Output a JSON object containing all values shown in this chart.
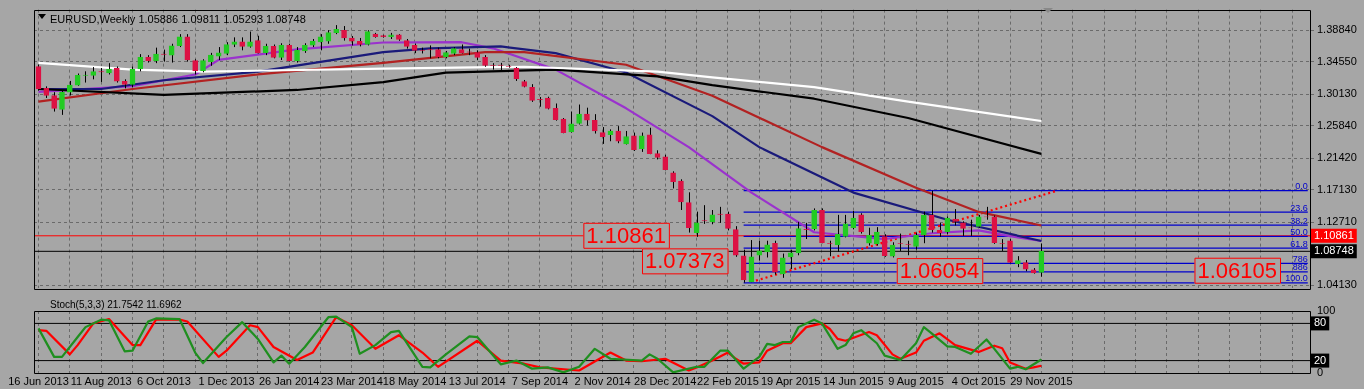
{
  "chart_data": [
    {
      "type": "candlestick",
      "title": "EURUSD,Weekly 1.05886 1.09811 1.05293 1.08748",
      "x": [
        "2013-06-16",
        "2013-06-23",
        "2013-06-30",
        "2013-07-07",
        "2013-07-14",
        "2013-07-21",
        "2013-07-28",
        "2013-08-04",
        "2013-08-11",
        "2013-08-18",
        "2013-08-25",
        "2013-09-01",
        "2013-09-08",
        "2013-09-15",
        "2013-09-22",
        "2013-09-29",
        "2013-10-06",
        "2013-10-13",
        "2013-10-20",
        "2013-10-27",
        "2013-11-03",
        "2013-11-10",
        "2013-11-17",
        "2013-11-24",
        "2013-12-01",
        "2013-12-08",
        "2013-12-15",
        "2013-12-22",
        "2013-12-29",
        "2014-01-05",
        "2014-01-12",
        "2014-01-19",
        "2014-01-26",
        "2014-02-02",
        "2014-02-09",
        "2014-02-16",
        "2014-02-23",
        "2014-03-02",
        "2014-03-09",
        "2014-03-16",
        "2014-03-23",
        "2014-03-30",
        "2014-04-06",
        "2014-04-13",
        "2014-04-20",
        "2014-04-27",
        "2014-05-04",
        "2014-05-11",
        "2014-05-18",
        "2014-05-25",
        "2014-06-01",
        "2014-06-08",
        "2014-06-15",
        "2014-06-22",
        "2014-06-29",
        "2014-07-06",
        "2014-07-13",
        "2014-07-20",
        "2014-07-27",
        "2014-08-03",
        "2014-08-10",
        "2014-08-17",
        "2014-08-24",
        "2014-08-31",
        "2014-09-07",
        "2014-09-14",
        "2014-09-21",
        "2014-09-28",
        "2014-10-05",
        "2014-10-12",
        "2014-10-19",
        "2014-10-26",
        "2014-11-02",
        "2014-11-09",
        "2014-11-16",
        "2014-11-23",
        "2014-11-30",
        "2014-12-07",
        "2014-12-14",
        "2014-12-21",
        "2014-12-28",
        "2015-01-04",
        "2015-01-11",
        "2015-01-18",
        "2015-01-25",
        "2015-02-01",
        "2015-02-08",
        "2015-02-15",
        "2015-02-22",
        "2015-03-01",
        "2015-03-08",
        "2015-03-15",
        "2015-03-22",
        "2015-03-29",
        "2015-04-05",
        "2015-04-12",
        "2015-04-19",
        "2015-04-26",
        "2015-05-03",
        "2015-05-10",
        "2015-05-17",
        "2015-05-24",
        "2015-05-31",
        "2015-06-07",
        "2015-06-14",
        "2015-06-21",
        "2015-06-28",
        "2015-07-05",
        "2015-07-12",
        "2015-07-19",
        "2015-07-26",
        "2015-08-02",
        "2015-08-09",
        "2015-08-16",
        "2015-08-23",
        "2015-08-30",
        "2015-09-06",
        "2015-09-13",
        "2015-09-20",
        "2015-09-27",
        "2015-10-04",
        "2015-10-11",
        "2015-10-18",
        "2015-10-25",
        "2015-11-01",
        "2015-11-08",
        "2015-11-15",
        "2015-11-22",
        "2015-11-29"
      ],
      "ohlc": [
        [
          1.3391,
          1.3414,
          1.3062,
          1.3084
        ],
        [
          1.3093,
          1.312,
          1.2962,
          1.2996
        ],
        [
          1.2996,
          1.3041,
          1.2777,
          1.2821
        ],
        [
          1.2807,
          1.3062,
          1.2732,
          1.3041
        ],
        [
          1.3041,
          1.3194,
          1.2996,
          1.3137
        ],
        [
          1.3137,
          1.3295,
          1.3128,
          1.3269
        ],
        [
          1.3269,
          1.3325,
          1.3172,
          1.3272
        ],
        [
          1.3269,
          1.3383,
          1.3216,
          1.3321
        ],
        [
          1.3321,
          1.337,
          1.318,
          1.3318
        ],
        [
          1.3304,
          1.3436,
          1.3282,
          1.3357
        ],
        [
          1.3365,
          1.3391,
          1.3172,
          1.319
        ],
        [
          1.319,
          1.3216,
          1.3093,
          1.3146
        ],
        [
          1.3146,
          1.3391,
          1.3107,
          1.3357
        ],
        [
          1.3357,
          1.3559,
          1.3325,
          1.3515
        ],
        [
          1.3515,
          1.3545,
          1.3444,
          1.347
        ],
        [
          1.347,
          1.3647,
          1.3436,
          1.3559
        ],
        [
          1.3559,
          1.362,
          1.3457,
          1.3556
        ],
        [
          1.3545,
          1.37,
          1.3444,
          1.3673
        ],
        [
          1.3673,
          1.3831,
          1.3655,
          1.3796
        ],
        [
          1.3796,
          1.3831,
          1.3457,
          1.3479
        ],
        [
          1.347,
          1.3489,
          1.3282,
          1.3331
        ],
        [
          1.3331,
          1.3489,
          1.3312,
          1.347
        ],
        [
          1.3457,
          1.3576,
          1.34,
          1.3545
        ],
        [
          1.3532,
          1.3655,
          1.3479,
          1.3576
        ],
        [
          1.3568,
          1.3721,
          1.3545,
          1.369
        ],
        [
          1.369,
          1.3787,
          1.3655,
          1.3726
        ],
        [
          1.3726,
          1.3787,
          1.3611,
          1.3664
        ],
        [
          1.3664,
          1.3866,
          1.3647,
          1.3726
        ],
        [
          1.3743,
          1.3809,
          1.3568,
          1.3576
        ],
        [
          1.3576,
          1.37,
          1.3545,
          1.3664
        ],
        [
          1.3664,
          1.369,
          1.3502,
          1.3515
        ],
        [
          1.3515,
          1.3707,
          1.3479,
          1.3677
        ],
        [
          1.3677,
          1.37,
          1.3457,
          1.347
        ],
        [
          1.347,
          1.3655,
          1.3444,
          1.3611
        ],
        [
          1.3602,
          1.3707,
          1.3576,
          1.3677
        ],
        [
          1.3681,
          1.3765,
          1.3655,
          1.3734
        ],
        [
          1.3726,
          1.3831,
          1.3611,
          1.3796
        ],
        [
          1.3734,
          1.3884,
          1.37,
          1.3852
        ],
        [
          1.3852,
          1.3954,
          1.3831,
          1.3897
        ],
        [
          1.3884,
          1.3941,
          1.3743,
          1.3779
        ],
        [
          1.3779,
          1.3805,
          1.3677,
          1.3734
        ],
        [
          1.3734,
          1.3779,
          1.3664,
          1.369
        ],
        [
          1.369,
          1.3884,
          1.3677,
          1.3866
        ],
        [
          1.3831,
          1.3848,
          1.3783,
          1.3796
        ],
        [
          1.3813,
          1.3822,
          1.3783,
          1.3796
        ],
        [
          1.3796,
          1.3848,
          1.3765,
          1.3822
        ],
        [
          1.3822,
          1.3831,
          1.374,
          1.376
        ],
        [
          1.3743,
          1.3765,
          1.3634,
          1.3664
        ],
        [
          1.3677,
          1.3703,
          1.3572,
          1.3611
        ],
        [
          1.3611,
          1.3647,
          1.3568,
          1.3608
        ],
        [
          1.362,
          1.3677,
          1.3502,
          1.3617
        ],
        [
          1.362,
          1.3647,
          1.3502,
          1.3523
        ],
        [
          1.3523,
          1.3602,
          1.3502,
          1.3581
        ],
        [
          1.3568,
          1.3655,
          1.3545,
          1.3634
        ],
        [
          1.362,
          1.369,
          1.3568,
          1.3576
        ],
        [
          1.359,
          1.3634,
          1.3545,
          1.3587
        ],
        [
          1.3581,
          1.3611,
          1.3479,
          1.3515
        ],
        [
          1.3515,
          1.3545,
          1.3387,
          1.3404
        ],
        [
          1.3404,
          1.3436,
          1.3348,
          1.3401
        ],
        [
          1.3409,
          1.344,
          1.3339,
          1.3406
        ],
        [
          1.3391,
          1.3414,
          1.3374,
          1.3389
        ],
        [
          1.337,
          1.3383,
          1.3194,
          1.3225
        ],
        [
          1.3186,
          1.3207,
          1.3107,
          1.312
        ],
        [
          1.3107,
          1.315,
          1.2909,
          1.293
        ],
        [
          1.2943,
          1.2975,
          1.2843,
          1.294
        ],
        [
          1.2962,
          1.2979,
          1.2807,
          1.2821
        ],
        [
          1.2821,
          1.2887,
          1.2653,
          1.2666
        ],
        [
          1.2676,
          1.2689,
          1.2482,
          1.2491
        ],
        [
          1.25,
          1.2777,
          1.2491,
          1.261
        ],
        [
          1.2614,
          1.2873,
          1.2601,
          1.2742
        ],
        [
          1.2742,
          1.283,
          1.2587,
          1.2659
        ],
        [
          1.2659,
          1.2742,
          1.2478,
          1.2513
        ],
        [
          1.2491,
          1.2566,
          1.2337,
          1.2435
        ],
        [
          1.2461,
          1.2535,
          1.2373,
          1.2513
        ],
        [
          1.2513,
          1.2579,
          1.2346,
          1.2373
        ],
        [
          1.2337,
          1.2513,
          1.2329,
          1.2438
        ],
        [
          1.2448,
          1.2491,
          1.2241,
          1.2258
        ],
        [
          1.2271,
          1.2491,
          1.2228,
          1.2448
        ],
        [
          1.2461,
          1.2557,
          1.2197,
          1.2205
        ],
        [
          1.2205,
          1.225,
          1.2126,
          1.2152
        ],
        [
          1.2162,
          1.2188,
          1.1977,
          1.1986
        ],
        [
          1.1942,
          1.1964,
          1.1731,
          1.1823
        ],
        [
          1.1832,
          1.1855,
          1.1437,
          1.1546
        ],
        [
          1.1538,
          1.1678,
          1.113,
          1.1196
        ],
        [
          1.113,
          1.1415,
          1.1072,
          1.1262
        ],
        [
          1.1292,
          1.1503,
          1.1248,
          1.1289
        ],
        [
          1.1275,
          1.1437,
          1.1243,
          1.1371
        ],
        [
          1.138,
          1.148,
          1.1262,
          1.1377
        ],
        [
          1.138,
          1.1415,
          1.116,
          1.1187
        ],
        [
          1.1169,
          1.1217,
          1.08,
          1.0821
        ],
        [
          1.0813,
          1.0897,
          1.0449,
          1.0484
        ],
        [
          1.0458,
          1.1028,
          1.0455,
          1.08
        ],
        [
          1.0821,
          1.1019,
          1.0748,
          1.088
        ],
        [
          1.0867,
          1.1019,
          1.0791,
          1.0963
        ],
        [
          1.0985,
          1.1019,
          1.0558,
          1.059
        ],
        [
          1.0567,
          1.0844,
          1.0514,
          1.0787
        ],
        [
          1.08,
          1.0897,
          1.0633,
          1.0853
        ],
        [
          1.0853,
          1.1275,
          1.0821,
          1.1183
        ],
        [
          1.1174,
          1.1262,
          1.1042,
          1.1171
        ],
        [
          1.1183,
          1.1459,
          1.116,
          1.1433
        ],
        [
          1.1433,
          1.1459,
          1.0985,
          1.0993
        ],
        [
          1.0985,
          1.1019,
          1.0808,
          1.0982
        ],
        [
          1.0963,
          1.1371,
          1.0867,
          1.1107
        ],
        [
          1.1077,
          1.1371,
          1.1064,
          1.1249
        ],
        [
          1.1196,
          1.1424,
          1.1174,
          1.1327
        ],
        [
          1.1371,
          1.1393,
          1.1116,
          1.1143
        ],
        [
          1.0985,
          1.1196,
          1.0953,
          1.1094
        ],
        [
          1.0975,
          1.1204,
          1.0953,
          1.1138
        ],
        [
          1.1077,
          1.1107,
          1.08,
          1.0814
        ],
        [
          1.0808,
          1.0998,
          1.0791,
          1.0959
        ],
        [
          1.0985,
          1.1116,
          1.088,
          1.0982
        ],
        [
          1.0967,
          1.1019,
          1.0821,
          1.0964
        ],
        [
          1.094,
          1.1129,
          1.0897,
          1.1094
        ],
        [
          1.1098,
          1.1415,
          1.0985,
          1.1367
        ],
        [
          1.1367,
          1.17,
          1.113,
          1.1169
        ],
        [
          1.116,
          1.1262,
          1.1072,
          1.113
        ],
        [
          1.1138,
          1.1349,
          1.1107,
          1.1327
        ],
        [
          1.1314,
          1.145,
          1.1226,
          1.1283
        ],
        [
          1.1262,
          1.1283,
          1.1085,
          1.1187
        ],
        [
          1.1196,
          1.1305,
          1.1085,
          1.1193
        ],
        [
          1.1213,
          1.1371,
          1.1196,
          1.1345
        ],
        [
          1.1345,
          1.148,
          1.1305,
          1.1342
        ],
        [
          1.1345,
          1.1362,
          1.0976,
          1.0993
        ],
        [
          1.0985,
          1.1041,
          1.088,
          1.0982
        ],
        [
          1.1019,
          1.1041,
          1.0712,
          1.0725
        ],
        [
          1.0708,
          1.0809,
          1.0659,
          1.0748
        ],
        [
          1.0721,
          1.0756,
          1.0603,
          1.0633
        ],
        [
          1.0624,
          1.0646,
          1.0571,
          1.058
        ],
        [
          1.05886,
          1.09811,
          1.05293,
          1.08748
        ]
      ],
      "series": [
        {
          "type": "line",
          "color": "#ffffff",
          "x": [
            "2013-06-16",
            "2013-09-08",
            "2013-11-10",
            "2014-04-20",
            "2014-08-24",
            "2014-12-21",
            "2015-02-08",
            "2015-05-10",
            "2015-08-02",
            "2015-11-29"
          ],
          "values": [
            1.344,
            1.3348,
            1.3321,
            1.3361,
            1.3387,
            1.3321,
            1.3242,
            1.311,
            1.2913,
            1.2649
          ]
        },
        {
          "type": "line",
          "color": "#000000",
          "x": [
            "2013-06-16",
            "2013-10-06",
            "2014-02-02",
            "2014-04-20",
            "2014-06-15",
            "2014-09-21",
            "2014-12-21",
            "2015-02-08",
            "2015-05-10",
            "2015-08-02",
            "2015-11-29"
          ],
          "values": [
            1.3084,
            1.3005,
            1.3071,
            1.3177,
            1.3308,
            1.3348,
            1.3255,
            1.3137,
            1.2952,
            1.2689,
            1.2201
          ]
        },
        {
          "type": "line",
          "color": "#b22222",
          "x": [
            "2013-06-16",
            "2013-09-08",
            "2013-12-29",
            "2014-04-20",
            "2014-07-20",
            "2014-08-24",
            "2014-11-23",
            "2015-02-08",
            "2015-05-17",
            "2015-08-09",
            "2015-10-04",
            "2015-11-29"
          ],
          "values": [
            1.2913,
            1.3084,
            1.3282,
            1.344,
            1.3585,
            1.3585,
            1.3414,
            1.2992,
            1.2293,
            1.174,
            1.1411,
            1.1226
          ]
        },
        {
          "type": "line",
          "color": "#1a1a7a",
          "x": [
            "2013-06-16",
            "2013-08-11",
            "2013-10-06",
            "2013-12-29",
            "2014-04-20",
            "2014-06-01",
            "2014-08-03",
            "2014-09-21",
            "2014-11-23",
            "2015-02-08",
            "2015-03-22",
            "2015-06-14",
            "2015-09-06",
            "2015-11-29"
          ],
          "values": [
            1.3084,
            1.3084,
            1.3203,
            1.3321,
            1.3585,
            1.3638,
            1.3664,
            1.3572,
            1.3308,
            1.2715,
            1.2293,
            1.1674,
            1.1305,
            1.1015
          ]
        },
        {
          "type": "line",
          "color": "#9a32cd",
          "x": [
            "2013-06-16",
            "2013-09-08",
            "2013-11-03",
            "2013-11-24",
            "2014-02-02",
            "2014-04-20",
            "2014-06-29",
            "2014-07-27",
            "2014-09-21",
            "2014-11-23",
            "2015-01-18",
            "2015-03-15",
            "2015-05-10",
            "2015-07-12",
            "2015-08-23",
            "2015-10-04",
            "2015-11-01",
            "2015-11-29"
          ],
          "values": [
            1.3045,
            1.3124,
            1.3282,
            1.348,
            1.3624,
            1.3717,
            1.3721,
            1.3638,
            1.3348,
            1.2821,
            1.2293,
            1.1674,
            1.1134,
            1.1042,
            1.1121,
            1.116,
            1.1081,
            1.1015
          ]
        },
        {
          "type": "line",
          "color": "#ff0000",
          "line_style": "dotted",
          "x": [
            "2015-03-19",
            "2015-12-13"
          ],
          "values": [
            1.0476,
            1.17
          ]
        },
        {
          "type": "line",
          "name": "0.0",
          "color": "#0000cc",
          "x": [
            "2015-03-08",
            "2016-07-24"
          ],
          "values": [
            1.17,
            1.17
          ]
        },
        {
          "type": "line",
          "name": "23.6",
          "color": "#0000cc",
          "x": [
            "2015-03-08",
            "2016-07-24"
          ],
          "values": [
            1.1407,
            1.1407
          ]
        },
        {
          "type": "line",
          "name": "38.2",
          "color": "#0000cc",
          "x": [
            "2015-03-08",
            "2016-07-24"
          ],
          "values": [
            1.123,
            1.123
          ]
        },
        {
          "type": "line",
          "name": "50.0",
          "color": "#0000cc",
          "x": [
            "2015-03-08",
            "2016-07-24"
          ],
          "values": [
            1.1077,
            1.1077
          ]
        },
        {
          "type": "line",
          "name": "61.8",
          "color": "#0000cc",
          "x": [
            "2015-03-08",
            "2016-07-24"
          ],
          "values": [
            1.0919,
            1.0919
          ]
        },
        {
          "type": "line",
          "name": "786",
          "color": "#0000cc",
          "x": [
            "2015-03-08",
            "2016-07-24"
          ],
          "values": [
            1.0712,
            1.0712
          ]
        },
        {
          "type": "line",
          "name": "886",
          "color": "#0000cc",
          "x": [
            "2015-03-08",
            "2016-07-24"
          ],
          "values": [
            1.0594,
            1.0594
          ]
        },
        {
          "type": "line",
          "name": "100.0",
          "color": "#0000cc",
          "x": [
            "2015-03-08",
            "2016-07-24"
          ],
          "values": [
            1.0445,
            1.0445
          ]
        }
      ],
      "ref_lines": [
        {
          "axis": "y",
          "value": 1.10861,
          "label": "1.10861",
          "color": "#ff0000"
        },
        {
          "axis": "y",
          "value": 1.08748,
          "label": "1.08748",
          "color": "#000000"
        }
      ],
      "annotations": [
        {
          "text": "1.10861",
          "x": "2014-11-23",
          "y": 1.10861
        },
        "1.07373",
        {
          "text": "1.06054",
          "x": "2015-08-30",
          "y": 1.06054
        },
        {
          "text": "1.06105",
          "x": "2016-05-22",
          "y": 1.06105
        }
      ],
      "xlim": [
        "2013-06-12",
        "2016-07-26"
      ],
      "xticks": [
        {
          "value": "2013-06-16",
          "label": null
        },
        {
          "value": "2013-07-14",
          "label": null
        },
        {
          "value": "2013-08-11",
          "label": null
        },
        {
          "value": "2013-09-08",
          "label": null
        },
        {
          "value": "2013-10-06",
          "label": null
        },
        {
          "value": "2013-11-03",
          "label": null
        },
        {
          "value": "2013-12-01",
          "label": null
        },
        {
          "value": "2013-12-29",
          "label": null
        },
        {
          "value": "2014-01-26",
          "label": null
        },
        {
          "value": "2014-02-23",
          "label": null
        },
        {
          "value": "2014-03-23",
          "label": null
        },
        {
          "value": "2014-04-20",
          "label": null
        },
        {
          "value": "2014-05-18",
          "label": null
        },
        {
          "value": "2014-06-15",
          "label": null
        },
        {
          "value": "2014-07-13",
          "label": null
        },
        {
          "value": "2014-08-10",
          "label": null
        },
        {
          "value": "2014-09-07",
          "label": null
        },
        {
          "value": "2014-10-05",
          "label": null
        },
        {
          "value": "2014-11-02",
          "label": null
        },
        {
          "value": "2014-11-30",
          "label": null
        },
        {
          "value": "2014-12-28",
          "label": null
        },
        {
          "value": "2015-01-25",
          "label": null
        },
        {
          "value": "2015-02-22",
          "label": null
        },
        {
          "value": "2015-03-22",
          "label": null
        },
        {
          "value": "2015-04-19",
          "label": null
        },
        {
          "value": "2015-05-17",
          "label": null
        },
        {
          "value": "2015-06-14",
          "label": null
        },
        {
          "value": "2015-07-12",
          "label": null
        },
        {
          "value": "2015-08-09",
          "label": null
        },
        {
          "value": "2015-09-06",
          "label": null
        },
        {
          "value": "2015-10-04",
          "label": null
        },
        {
          "value": "2015-11-01",
          "label": null
        },
        {
          "value": "2015-11-29",
          "label": null
        },
        {
          "value": "2015-12-27",
          "label": null
        },
        {
          "value": "2016-01-24",
          "label": null
        },
        {
          "value": "2016-02-21",
          "label": null
        },
        {
          "value": "2016-03-20",
          "label": null
        },
        {
          "value": "2016-04-17",
          "label": null
        },
        {
          "value": "2016-05-15",
          "label": null
        },
        {
          "value": "2016-06-12",
          "label": null
        },
        {
          "value": "2016-07-10",
          "label": null
        }
      ],
      "ylim": [
        1.037,
        1.4165
      ],
      "yticks": [
        {
          "value": 1.3884,
          "label": "1.38840"
        },
        {
          "value": 1.3455,
          "label": "1.34550"
        },
        {
          "value": 1.3013,
          "label": "1.30130"
        },
        {
          "value": 1.2584,
          "label": "1.25840"
        },
        {
          "value": 1.2142,
          "label": "1.21420"
        },
        {
          "value": 1.1713,
          "label": "1.17130"
        },
        {
          "value": 1.1271,
          "label": "1.12710"
        },
        {
          "value": 1.0413,
          "label": "1.04130"
        }
      ],
      "grid": true,
      "legend": false,
      "tick_labels": "y",
      "marker": "none"
    },
    {
      "type": "line",
      "title": "Stoch(5,3,3) 21.7542 11.6962",
      "series": [
        {
          "type": "line",
          "color": "#1f8f1f",
          "x": [
            "2013-06-16",
            "2013-06-30",
            "2013-07-07",
            "2013-07-21",
            "2013-07-28",
            "2013-08-11",
            "2013-08-18",
            "2013-09-01",
            "2013-09-08",
            "2013-09-22",
            "2013-09-29",
            "2013-10-20",
            "2013-11-03",
            "2013-11-10",
            "2013-12-01",
            "2013-12-15",
            "2013-12-29",
            "2014-01-12",
            "2014-01-19",
            "2014-01-26",
            "2014-02-09",
            "2014-03-02",
            "2014-03-09",
            "2014-03-23",
            "2014-03-30",
            "2014-04-13",
            "2014-04-27",
            "2014-05-04",
            "2014-05-25",
            "2014-06-01",
            "2014-06-15",
            "2014-07-06",
            "2014-07-13",
            "2014-08-03",
            "2014-08-17",
            "2014-08-31",
            "2014-09-14",
            "2014-09-28",
            "2014-10-12",
            "2014-10-26",
            "2014-11-09",
            "2014-12-07",
            "2014-12-14",
            "2014-12-21",
            "2015-01-04",
            "2015-01-25",
            "2015-02-01",
            "2015-02-15",
            "2015-02-22",
            "2015-03-08",
            "2015-03-22",
            "2015-03-29",
            "2015-04-05",
            "2015-04-12",
            "2015-04-19",
            "2015-04-26",
            "2015-05-10",
            "2015-05-17",
            "2015-05-31",
            "2015-06-07",
            "2015-06-14",
            "2015-06-21",
            "2015-07-05",
            "2015-07-12",
            "2015-07-26",
            "2015-08-09",
            "2015-08-16",
            "2015-08-23",
            "2015-09-06",
            "2015-09-13",
            "2015-09-27",
            "2015-10-11",
            "2015-10-18",
            "2015-11-01",
            "2015-11-08",
            "2015-11-15",
            "2015-11-29"
          ],
          "values": [
            72,
            26,
            26,
            58,
            74,
            86,
            85,
            35,
            36,
            83,
            88,
            87,
            33,
            16,
            58,
            82,
            55,
            17,
            28,
            15,
            42,
            90,
            91,
            74,
            31,
            45,
            66,
            68,
            10,
            9,
            30,
            59,
            58,
            14,
            20,
            7,
            9,
            1,
            10,
            39,
            23,
            20,
            30,
            23,
            1,
            10,
            10,
            36,
            36,
            7,
            26,
            47,
            45,
            50,
            50,
            74,
            86,
            80,
            39,
            45,
            64,
            69,
            48,
            28,
            21,
            48,
            74,
            64,
            43,
            42,
            31,
            54,
            39,
            7,
            10,
            6,
            21.7542
          ]
        },
        {
          "type": "line",
          "color": "#ff0000",
          "x": [
            "2013-06-16",
            "2013-06-23",
            "2013-07-14",
            "2013-07-21",
            "2013-08-04",
            "2013-08-18",
            "2013-09-08",
            "2013-09-15",
            "2013-09-29",
            "2013-10-20",
            "2013-10-27",
            "2013-11-24",
            "2013-12-01",
            "2013-12-22",
            "2013-12-29",
            "2014-01-12",
            "2014-02-02",
            "2014-02-16",
            "2014-03-09",
            "2014-03-23",
            "2014-04-13",
            "2014-05-04",
            "2014-05-25",
            "2014-06-08",
            "2014-07-13",
            "2014-08-03",
            "2014-08-24",
            "2014-09-07",
            "2014-10-12",
            "2014-11-09",
            "2014-11-23",
            "2014-12-07",
            "2014-12-28",
            "2015-01-18",
            "2015-01-25",
            "2015-02-08",
            "2015-02-22",
            "2015-03-01",
            "2015-03-08",
            "2015-03-22",
            "2015-03-29",
            "2015-04-12",
            "2015-04-19",
            "2015-05-03",
            "2015-05-17",
            "2015-05-24",
            "2015-05-31",
            "2015-06-07",
            "2015-06-28",
            "2015-07-05",
            "2015-07-19",
            "2015-07-26",
            "2015-08-09",
            "2015-08-16",
            "2015-08-30",
            "2015-09-13",
            "2015-10-04",
            "2015-10-18",
            "2015-10-25",
            "2015-11-01",
            "2015-11-15",
            "2015-11-22",
            "2015-11-29"
          ],
          "values": [
            69,
            68,
            30,
            45,
            80,
            87,
            45,
            45,
            86,
            86,
            83,
            26,
            36,
            77,
            74,
            42,
            21,
            33,
            90,
            77,
            39,
            61,
            33,
            10,
            52,
            20,
            15,
            9,
            4,
            33,
            20,
            19,
            23,
            4,
            9,
            20,
            33,
            23,
            15,
            17,
            36,
            48,
            48,
            74,
            80,
            71,
            55,
            52,
            66,
            61,
            30,
            23,
            33,
            52,
            64,
            45,
            34,
            44,
            40,
            17,
            7,
            9,
            11.6962
          ]
        }
      ],
      "ref_lines": [
        {
          "axis": "y",
          "value": 80,
          "label": "80",
          "color": "#000000"
        },
        {
          "axis": "y",
          "value": 20,
          "label": "20",
          "color": "#000000"
        }
      ],
      "xlim": [
        "2013-06-12",
        "2016-07-26"
      ],
      "xticks": [
        {
          "value": "2013-06-16",
          "label": "16 Jun 2013"
        },
        {
          "value": "2013-07-14",
          "label": null
        },
        {
          "value": "2013-08-11",
          "label": "11 Aug 2013"
        },
        {
          "value": "2013-09-08",
          "label": null
        },
        {
          "value": "2013-10-06",
          "label": "6 Oct 2013"
        },
        {
          "value": "2013-11-03",
          "label": null
        },
        {
          "value": "2013-12-01",
          "label": "1 Dec 2013"
        },
        {
          "value": "2013-12-29",
          "label": null
        },
        {
          "value": "2014-01-26",
          "label": "26 Jan 2014"
        },
        {
          "value": "2014-02-23",
          "label": null
        },
        {
          "value": "2014-03-23",
          "label": "23 Mar 2014"
        },
        {
          "value": "2014-04-20",
          "label": null
        },
        {
          "value": "2014-05-18",
          "label": "18 May 2014"
        },
        {
          "value": "2014-06-15",
          "label": null
        },
        {
          "value": "2014-07-13",
          "label": "13 Jul 2014"
        },
        {
          "value": "2014-08-10",
          "label": null
        },
        {
          "value": "2014-09-07",
          "label": "7 Sep 2014"
        },
        {
          "value": "2014-10-05",
          "label": null
        },
        {
          "value": "2014-11-02",
          "label": "2 Nov 2014"
        },
        {
          "value": "2014-11-30",
          "label": null
        },
        {
          "value": "2014-12-28",
          "label": "28 Dec 2014"
        },
        {
          "value": "2015-01-25",
          "label": null
        },
        {
          "value": "2015-02-22",
          "label": "22 Feb 2015"
        },
        {
          "value": "2015-03-22",
          "label": null
        },
        {
          "value": "2015-04-19",
          "label": "19 Apr 2015"
        },
        {
          "value": "2015-05-17",
          "label": null
        },
        {
          "value": "2015-06-14",
          "label": "14 Jun 2015"
        },
        {
          "value": "2015-07-12",
          "label": null
        },
        {
          "value": "2015-08-09",
          "label": "9 Aug 2015"
        },
        {
          "value": "2015-09-06",
          "label": null
        },
        {
          "value": "2015-10-04",
          "label": "4 Oct 2015"
        },
        {
          "value": "2015-11-01",
          "label": null
        },
        {
          "value": "2015-11-29",
          "label": "29 Nov 2015"
        },
        {
          "value": "2015-12-27",
          "label": null
        },
        {
          "value": "2016-01-24",
          "label": null
        },
        {
          "value": "2016-02-21",
          "label": null
        },
        {
          "value": "2016-03-20",
          "label": null
        },
        {
          "value": "2016-04-17",
          "label": null
        },
        {
          "value": "2016-05-15",
          "label": null
        },
        {
          "value": "2016-06-12",
          "label": null
        },
        {
          "value": "2016-07-10",
          "label": null
        }
      ],
      "ylim": [
        0,
        100
      ],
      "yticks": [
        0,
        100
      ],
      "grid": "x",
      "legend": false,
      "marker": "none"
    }
  ]
}
